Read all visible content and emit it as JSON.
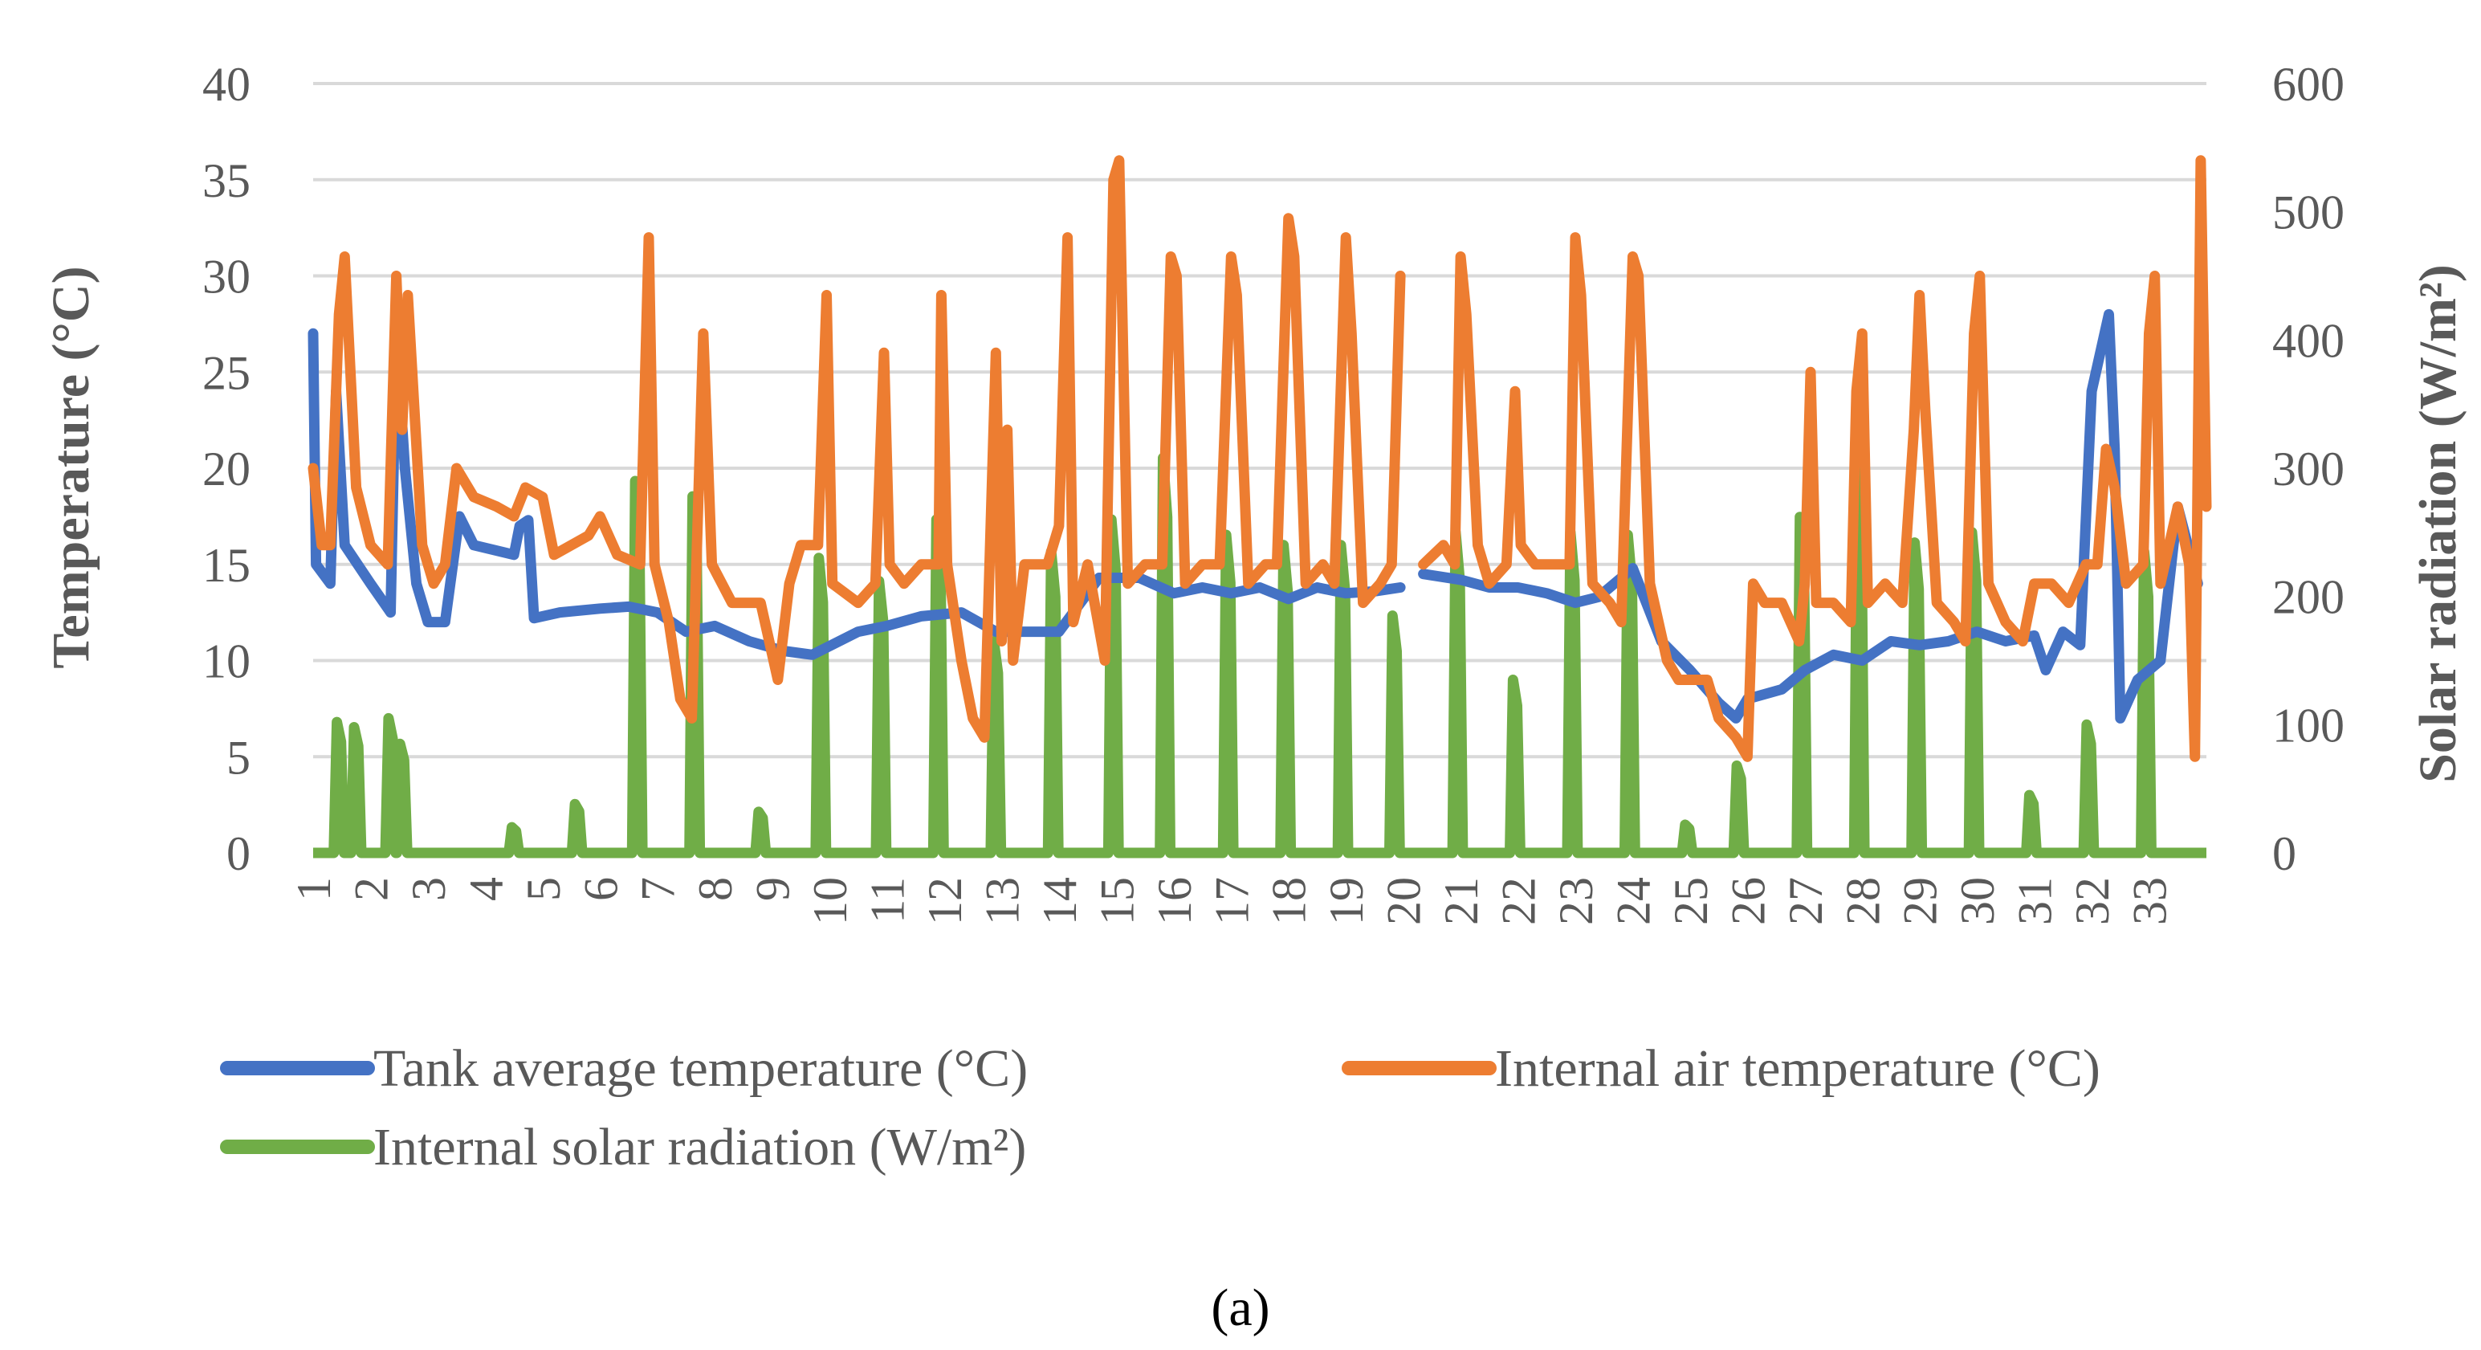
{
  "chart_data": {
    "type": "line",
    "title": "",
    "xlabel": "",
    "ylabel": "Temperature (°C)",
    "y2label": "Solar radiation (W/m²)",
    "ylim": [
      0,
      40
    ],
    "y2lim": [
      0,
      600
    ],
    "yticks": [
      "0",
      "5",
      "10",
      "15",
      "20",
      "25",
      "30",
      "35",
      "40"
    ],
    "y2ticks": [
      "0",
      "100",
      "200",
      "300",
      "400",
      "500",
      "600"
    ],
    "x_categories": [
      "1",
      "2",
      "3",
      "4",
      "5",
      "6",
      "7",
      "8",
      "9",
      "10",
      "11",
      "12",
      "13",
      "14",
      "15",
      "16",
      "17",
      "18",
      "19",
      "20",
      "21",
      "22",
      "23",
      "24",
      "25",
      "26",
      "27",
      "28",
      "29",
      "30",
      "31",
      "32",
      "33"
    ],
    "x_range": [
      1,
      34
    ],
    "grid": true,
    "legend_position": "bottom",
    "caption": "(a)",
    "colors": {
      "tank": "#4472c4",
      "air": "#ed7d31",
      "solar": "#70ad47",
      "axis_text": "#595959"
    },
    "series": [
      {
        "name": "Tank average temperature (°C)",
        "axis": "left",
        "color": "#4472c4",
        "points": [
          [
            1,
            27
          ],
          [
            1.05,
            15
          ],
          [
            1.3,
            14
          ],
          [
            1.4,
            24
          ],
          [
            1.55,
            16
          ],
          [
            2,
            14
          ],
          [
            2.35,
            12.5
          ],
          [
            2.45,
            27
          ],
          [
            2.6,
            20
          ],
          [
            2.8,
            14
          ],
          [
            3,
            12
          ],
          [
            3.3,
            12
          ],
          [
            3.55,
            17.5
          ],
          [
            3.8,
            16
          ],
          [
            4.5,
            15.5
          ],
          [
            4.6,
            17
          ],
          [
            4.75,
            17.3
          ],
          [
            4.85,
            12.2
          ],
          [
            5.3,
            12.5
          ],
          [
            6,
            12.7
          ],
          [
            6.5,
            12.8
          ],
          [
            7,
            12.5
          ],
          [
            7.5,
            11.5
          ],
          [
            8,
            11.8
          ],
          [
            8.6,
            11
          ],
          [
            9.2,
            10.5
          ],
          [
            9.7,
            10.3
          ],
          [
            10.5,
            11.5
          ],
          [
            11,
            11.8
          ],
          [
            11.6,
            12.3
          ],
          [
            12.3,
            12.5
          ],
          [
            12.9,
            11.5
          ],
          [
            13.5,
            11.5
          ],
          [
            14,
            11.5
          ],
          [
            14.7,
            14.3
          ],
          [
            15.4,
            14.3
          ],
          [
            16,
            13.5
          ],
          [
            16.5,
            13.8
          ],
          [
            17,
            13.5
          ],
          [
            17.5,
            13.8
          ],
          [
            18,
            13.2
          ],
          [
            18.5,
            13.8
          ],
          [
            19,
            13.5
          ],
          [
            19.5,
            13.6
          ],
          [
            19.95,
            13.8
          ],
          [
            null,
            null
          ],
          [
            20.35,
            14.5
          ],
          [
            21,
            14.2
          ],
          [
            21.5,
            13.8
          ],
          [
            22,
            13.8
          ],
          [
            22.5,
            13.5
          ],
          [
            23,
            13
          ],
          [
            23.4,
            13.3
          ],
          [
            24,
            14.8
          ],
          [
            24.5,
            11
          ],
          [
            25,
            9.5
          ],
          [
            25.5,
            7.8
          ],
          [
            25.8,
            7
          ],
          [
            26,
            8
          ],
          [
            26.6,
            8.5
          ],
          [
            27,
            9.5
          ],
          [
            27.5,
            10.3
          ],
          [
            28,
            10
          ],
          [
            28.5,
            11
          ],
          [
            29,
            10.8
          ],
          [
            29.5,
            11
          ],
          [
            30,
            11.5
          ],
          [
            30.5,
            11
          ],
          [
            31,
            11.3
          ],
          [
            31.2,
            9.5
          ],
          [
            31.5,
            11.5
          ],
          [
            31.8,
            10.8
          ],
          [
            32,
            24
          ],
          [
            32.3,
            28
          ],
          [
            32.4,
            21
          ],
          [
            32.5,
            7
          ],
          [
            32.8,
            9
          ],
          [
            33.2,
            10
          ],
          [
            33.5,
            18
          ],
          [
            33.85,
            14
          ]
        ]
      },
      {
        "name": "Internal air temperature (°C)",
        "axis": "left",
        "color": "#ed7d31",
        "points": [
          [
            1,
            20
          ],
          [
            1.15,
            16
          ],
          [
            1.3,
            16
          ],
          [
            1.45,
            28
          ],
          [
            1.55,
            31
          ],
          [
            1.75,
            19
          ],
          [
            2,
            16
          ],
          [
            2.3,
            15
          ],
          [
            2.45,
            30
          ],
          [
            2.55,
            22
          ],
          [
            2.65,
            29
          ],
          [
            2.9,
            16
          ],
          [
            3.1,
            14
          ],
          [
            3.3,
            15
          ],
          [
            3.5,
            20
          ],
          [
            3.8,
            18.5
          ],
          [
            4.2,
            18
          ],
          [
            4.5,
            17.5
          ],
          [
            4.7,
            19
          ],
          [
            5,
            18.5
          ],
          [
            5.2,
            15.5
          ],
          [
            5.8,
            16.5
          ],
          [
            6,
            17.5
          ],
          [
            6.3,
            15.5
          ],
          [
            6.7,
            15
          ],
          [
            6.85,
            32
          ],
          [
            6.95,
            15
          ],
          [
            7.2,
            12
          ],
          [
            7.4,
            8
          ],
          [
            7.6,
            7
          ],
          [
            7.8,
            27
          ],
          [
            7.95,
            15
          ],
          [
            8.3,
            13
          ],
          [
            8.8,
            13
          ],
          [
            9.1,
            9
          ],
          [
            9.3,
            14
          ],
          [
            9.5,
            16
          ],
          [
            9.8,
            16
          ],
          [
            9.95,
            29
          ],
          [
            10.05,
            14
          ],
          [
            10.5,
            13
          ],
          [
            10.8,
            14
          ],
          [
            10.95,
            26
          ],
          [
            11.05,
            15
          ],
          [
            11.3,
            14
          ],
          [
            11.6,
            15
          ],
          [
            11.9,
            15
          ],
          [
            11.95,
            29
          ],
          [
            12.05,
            15
          ],
          [
            12.3,
            10
          ],
          [
            12.5,
            7
          ],
          [
            12.7,
            6
          ],
          [
            12.9,
            26
          ],
          [
            13,
            11
          ],
          [
            13.1,
            22
          ],
          [
            13.2,
            10
          ],
          [
            13.4,
            15
          ],
          [
            13.8,
            15
          ],
          [
            14,
            17
          ],
          [
            14.15,
            32
          ],
          [
            14.25,
            12
          ],
          [
            14.5,
            15
          ],
          [
            14.8,
            10
          ],
          [
            14.95,
            35
          ],
          [
            15.05,
            36
          ],
          [
            15.2,
            14
          ],
          [
            15.5,
            15
          ],
          [
            15.8,
            15
          ],
          [
            15.95,
            31
          ],
          [
            16.05,
            30
          ],
          [
            16.2,
            14
          ],
          [
            16.5,
            15
          ],
          [
            16.8,
            15
          ],
          [
            17,
            31
          ],
          [
            17.1,
            29
          ],
          [
            17.3,
            14
          ],
          [
            17.6,
            15
          ],
          [
            17.8,
            15
          ],
          [
            18,
            33
          ],
          [
            18.1,
            31
          ],
          [
            18.3,
            14
          ],
          [
            18.6,
            15
          ],
          [
            18.8,
            14
          ],
          [
            19,
            32
          ],
          [
            19.1,
            27
          ],
          [
            19.3,
            13
          ],
          [
            19.6,
            14
          ],
          [
            19.8,
            15
          ],
          [
            19.95,
            30
          ],
          [
            null,
            null
          ],
          [
            20.35,
            15
          ],
          [
            20.7,
            16
          ],
          [
            20.9,
            15
          ],
          [
            21,
            31
          ],
          [
            21.1,
            28
          ],
          [
            21.3,
            16
          ],
          [
            21.5,
            14
          ],
          [
            21.8,
            15
          ],
          [
            21.95,
            24
          ],
          [
            22.05,
            16
          ],
          [
            22.3,
            15
          ],
          [
            22.6,
            15
          ],
          [
            22.9,
            15
          ],
          [
            23,
            32
          ],
          [
            23.1,
            29
          ],
          [
            23.3,
            14
          ],
          [
            23.6,
            13
          ],
          [
            23.8,
            12
          ],
          [
            24,
            31
          ],
          [
            24.1,
            30
          ],
          [
            24.3,
            14
          ],
          [
            24.6,
            10
          ],
          [
            24.8,
            9
          ],
          [
            25.3,
            9
          ],
          [
            25.5,
            7
          ],
          [
            25.8,
            6
          ],
          [
            26,
            5
          ],
          [
            26.1,
            14
          ],
          [
            26.3,
            13
          ],
          [
            26.6,
            13
          ],
          [
            26.9,
            11
          ],
          [
            27,
            14
          ],
          [
            27.1,
            25
          ],
          [
            27.2,
            13
          ],
          [
            27.5,
            13
          ],
          [
            27.8,
            12
          ],
          [
            27.9,
            24
          ],
          [
            28,
            27
          ],
          [
            28.1,
            13
          ],
          [
            28.4,
            14
          ],
          [
            28.7,
            13
          ],
          [
            28.9,
            22
          ],
          [
            29,
            29
          ],
          [
            29.1,
            23
          ],
          [
            29.3,
            13
          ],
          [
            29.6,
            12
          ],
          [
            29.8,
            11
          ],
          [
            29.95,
            27
          ],
          [
            30.05,
            30
          ],
          [
            30.2,
            14
          ],
          [
            30.5,
            12
          ],
          [
            30.8,
            11
          ],
          [
            31,
            14
          ],
          [
            31.3,
            14
          ],
          [
            31.6,
            13
          ],
          [
            31.9,
            15
          ],
          [
            32.1,
            15
          ],
          [
            32.25,
            21
          ],
          [
            32.4,
            19
          ],
          [
            32.6,
            14
          ],
          [
            32.9,
            15
          ],
          [
            33,
            27
          ],
          [
            33.1,
            30
          ],
          [
            33.2,
            14
          ],
          [
            33.5,
            18
          ],
          [
            33.7,
            15
          ],
          [
            33.8,
            5
          ],
          [
            33.9,
            36
          ],
          [
            34,
            18
          ]
        ]
      },
      {
        "name": "Internal solar radiation (W/m²)",
        "axis": "right",
        "color": "#70ad47",
        "peaks": [
          [
            1.45,
            102
          ],
          [
            1.75,
            98
          ],
          [
            2.35,
            105
          ],
          [
            2.55,
            85
          ],
          [
            4.5,
            20
          ],
          [
            5.6,
            38
          ],
          [
            6.65,
            290
          ],
          [
            7.65,
            278
          ],
          [
            8.8,
            32
          ],
          [
            9.85,
            230
          ],
          [
            10.9,
            212
          ],
          [
            11.9,
            260
          ],
          [
            12.9,
            165
          ],
          [
            13.9,
            235
          ],
          [
            14.95,
            260
          ],
          [
            15.85,
            308
          ],
          [
            16.95,
            248
          ],
          [
            17.95,
            240
          ],
          [
            18.95,
            240
          ],
          [
            19.85,
            185
          ],
          [
            20.95,
            250
          ],
          [
            21.95,
            135
          ],
          [
            22.95,
            250
          ],
          [
            23.95,
            248
          ],
          [
            24.95,
            22
          ],
          [
            25.85,
            68
          ],
          [
            26.95,
            262
          ],
          [
            27.95,
            300
          ],
          [
            28.95,
            242
          ],
          [
            29.95,
            250
          ],
          [
            30.95,
            45
          ],
          [
            31.95,
            100
          ],
          [
            32.95,
            235
          ]
        ]
      }
    ]
  },
  "legend": {
    "tank_label": "Tank average temperature (°C)",
    "air_label": "Internal air temperature (°C)",
    "solar_label": "Internal solar radiation (W/m²)"
  }
}
